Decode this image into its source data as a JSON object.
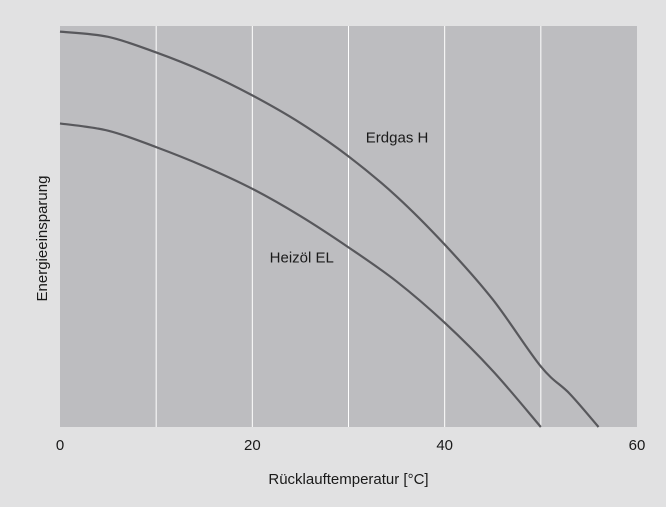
{
  "chart_data": {
    "type": "line",
    "title": "",
    "xlabel": "Rücklauftemperatur [°C]",
    "ylabel": "Energieeinsparung",
    "xlim": [
      0,
      60
    ],
    "ylim": [
      0,
      1
    ],
    "x_ticks": [
      0,
      20,
      40,
      60
    ],
    "x_ticks_labels": [
      "0",
      "20",
      "40",
      "60"
    ],
    "x_gridlines": [
      10,
      20,
      30,
      40,
      50
    ],
    "y_tick_labels_shown": false,
    "grid": true,
    "legend": "none",
    "colors": {
      "page_background": "#e1e1e2",
      "plot_background": "#bdbdc0",
      "line": "#58585c",
      "grid": "#ffffff",
      "text": "#1a1a1a"
    },
    "series": [
      {
        "name": "Erdgas H",
        "x": [
          0,
          5,
          10,
          15,
          20,
          25,
          30,
          35,
          40,
          45,
          50,
          53,
          56
        ],
        "y": [
          0.986,
          0.973,
          0.934,
          0.886,
          0.827,
          0.758,
          0.675,
          0.575,
          0.455,
          0.318,
          0.151,
          0.083,
          0.0
        ],
        "label_at": [
          31.8,
          0.71
        ]
      },
      {
        "name": "Heizöl EL",
        "x": [
          0,
          5,
          10,
          15,
          20,
          25,
          30,
          35,
          40,
          45,
          50
        ],
        "y": [
          0.757,
          0.739,
          0.698,
          0.65,
          0.594,
          0.526,
          0.448,
          0.363,
          0.26,
          0.14,
          0.0
        ],
        "label_at": [
          21.8,
          0.41
        ]
      }
    ]
  }
}
